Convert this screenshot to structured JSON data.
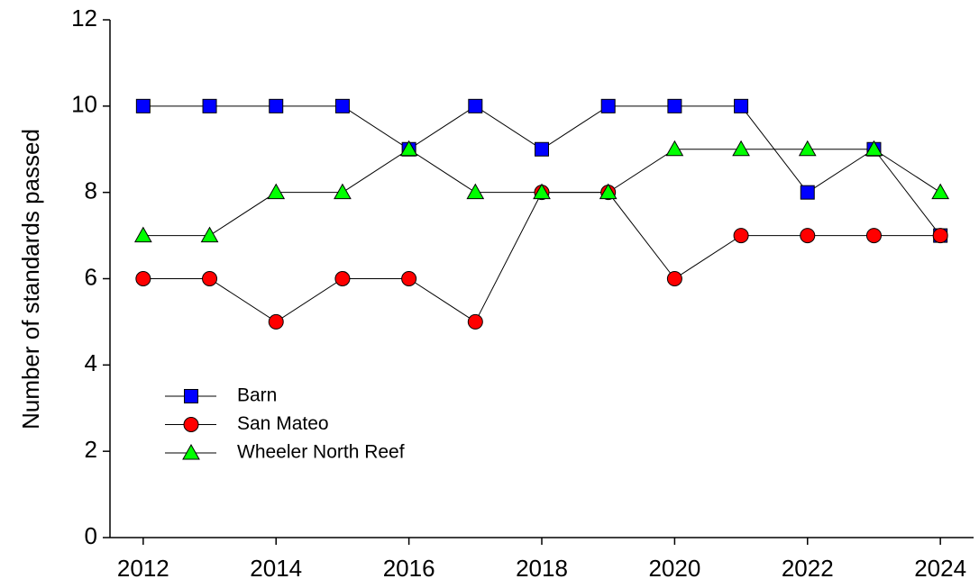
{
  "chart_data": {
    "type": "line",
    "y_label": "Number of standards passed",
    "x": [
      2012,
      2013,
      2014,
      2015,
      2016,
      2017,
      2018,
      2019,
      2020,
      2021,
      2022,
      2023,
      2024
    ],
    "series": [
      {
        "name": "Barn",
        "color": "#0000ff",
        "marker": "square",
        "values": [
          10,
          10,
          10,
          10,
          9,
          10,
          9,
          10,
          10,
          10,
          8,
          9,
          7
        ]
      },
      {
        "name": "San Mateo",
        "color": "#ff0000",
        "marker": "circle",
        "values": [
          6,
          6,
          5,
          6,
          6,
          5,
          8,
          8,
          6,
          7,
          7,
          7,
          7
        ]
      },
      {
        "name": "Wheeler North Reef",
        "color": "#00ff00",
        "marker": "triangle",
        "values": [
          7,
          7,
          8,
          8,
          9,
          8,
          8,
          8,
          9,
          9,
          9,
          9,
          8
        ]
      }
    ],
    "xlim": [
      2011.5,
      2024.5
    ],
    "xticks": [
      2012,
      2014,
      2016,
      2018,
      2020,
      2022,
      2024
    ],
    "ylim": [
      0,
      12
    ],
    "yticks": [
      0,
      2,
      4,
      6,
      8,
      10,
      12
    ],
    "legend": "lower-left",
    "grid": false
  }
}
